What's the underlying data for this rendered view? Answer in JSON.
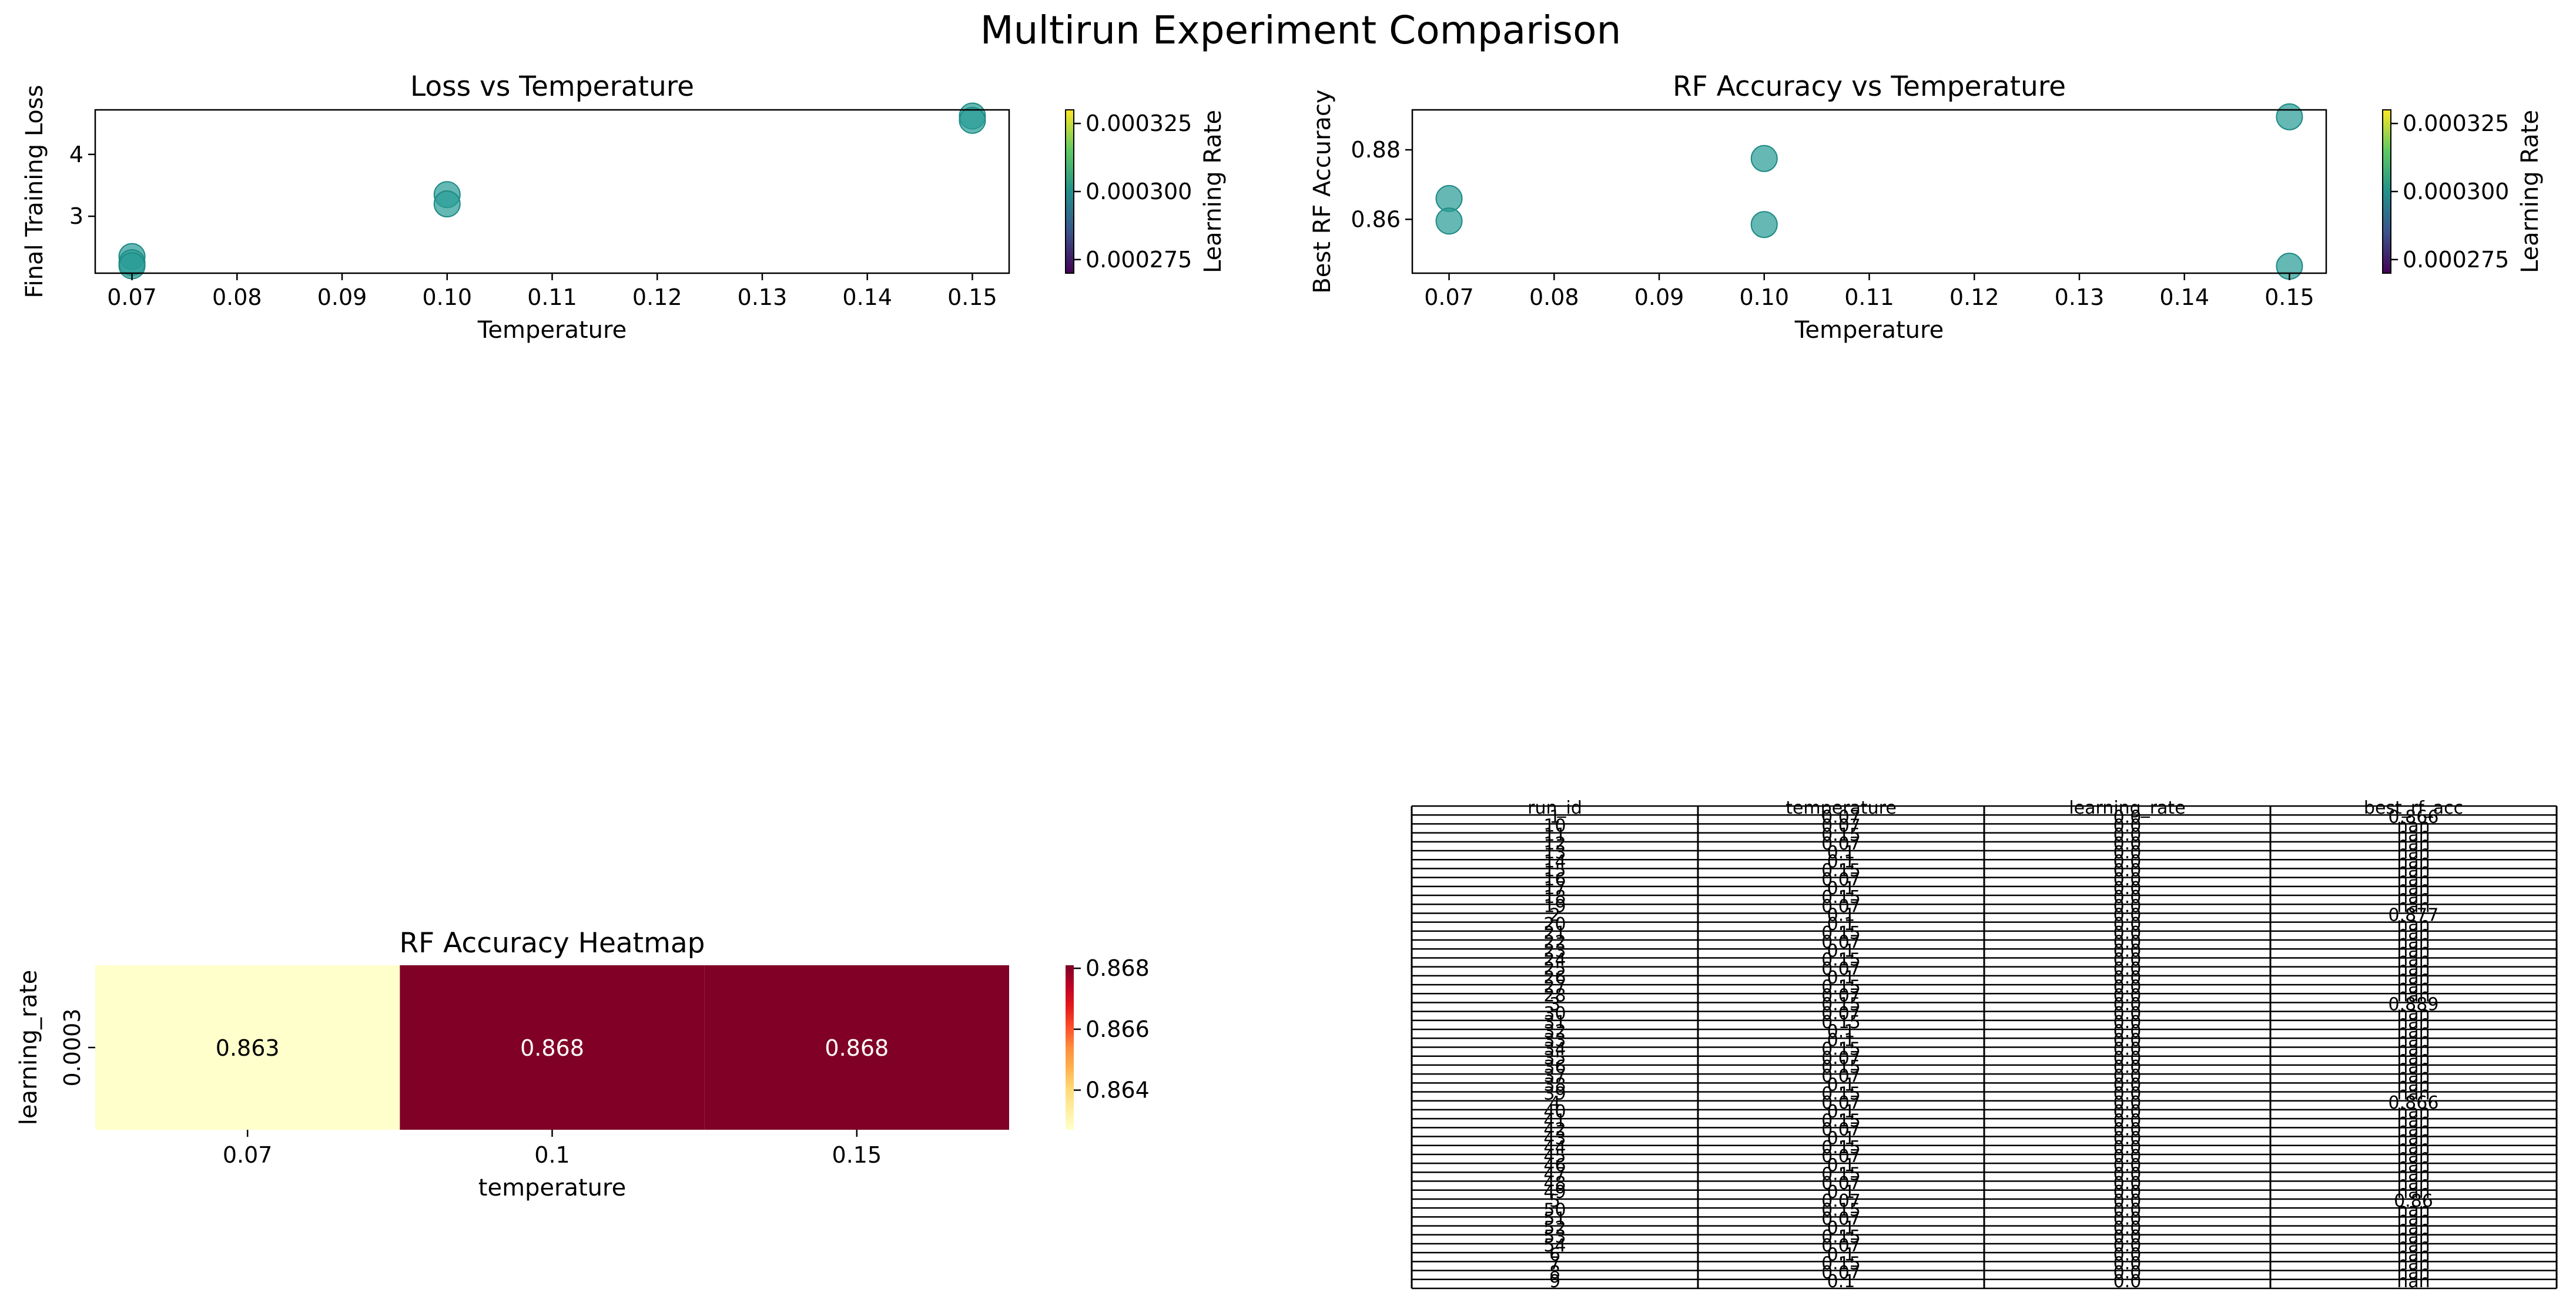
{
  "figure": {
    "title": "Multirun Experiment Comparison"
  },
  "colors": {
    "point_fill": "#2a9d96",
    "point_edge": "#1f8a85",
    "viridis": [
      "#440154",
      "#3b528b",
      "#21918c",
      "#5ec962",
      "#fde725"
    ],
    "ylorrd": [
      "#ffffcc",
      "#ffeda0",
      "#fed976",
      "#feb24c",
      "#fd8d3c",
      "#fc4e2a",
      "#e31a1c",
      "#bd0026",
      "#800026"
    ]
  },
  "chart_data": [
    {
      "type": "scatter",
      "title": "Loss vs Temperature",
      "xlabel": "Temperature",
      "ylabel": "Final Training Loss",
      "xlim": [
        0.0665,
        0.1535
      ],
      "ylim": [
        2.08,
        4.72
      ],
      "xticks": [
        "0.07",
        "0.08",
        "0.09",
        "0.10",
        "0.11",
        "0.12",
        "0.13",
        "0.14",
        "0.15"
      ],
      "yticks": [
        "3",
        "4"
      ],
      "x": [
        0.07,
        0.07,
        0.07,
        0.1,
        0.1,
        0.15,
        0.15
      ],
      "y": [
        2.35,
        2.25,
        2.2,
        3.35,
        3.2,
        4.62,
        4.55
      ],
      "colorbar": {
        "label": "Learning Rate",
        "min": 0.00027,
        "max": 0.00033,
        "ticks": [
          "0.000275",
          "0.000300",
          "0.000325"
        ]
      }
    },
    {
      "type": "scatter",
      "title": "RF Accuracy vs Temperature",
      "xlabel": "Temperature",
      "ylabel": "Best RF Accuracy",
      "xlim": [
        0.0665,
        0.1535
      ],
      "ylim": [
        0.8445,
        0.8915
      ],
      "xticks": [
        "0.07",
        "0.08",
        "0.09",
        "0.10",
        "0.11",
        "0.12",
        "0.13",
        "0.14",
        "0.15"
      ],
      "yticks": [
        "0.86",
        "0.88"
      ],
      "x": [
        0.07,
        0.07,
        0.1,
        0.1,
        0.15,
        0.15
      ],
      "y": [
        0.866,
        0.8595,
        0.8775,
        0.8585,
        0.8895,
        0.8465
      ],
      "colorbar": {
        "label": "Learning Rate",
        "min": 0.00027,
        "max": 0.00033,
        "ticks": [
          "0.000275",
          "0.000300",
          "0.000325"
        ]
      }
    },
    {
      "type": "heatmap",
      "title": "RF Accuracy Heatmap",
      "xlabel": "temperature",
      "ylabel": "learning_rate",
      "x_categories": [
        "0.07",
        "0.1",
        "0.15"
      ],
      "y_categories": [
        "0.0003"
      ],
      "values": [
        [
          0.863,
          0.868,
          0.868
        ]
      ],
      "labels": [
        [
          "0.863",
          "0.868",
          "0.868"
        ]
      ],
      "vmin": 0.8627,
      "vmax": 0.8681,
      "colorbar": {
        "ticks": [
          "0.864",
          "0.866",
          "0.868"
        ],
        "tick_values": [
          0.864,
          0.866,
          0.868
        ]
      }
    },
    {
      "type": "table",
      "columns": [
        "run_id",
        "temperature",
        "learning_rate",
        "best_rf_acc"
      ],
      "rows": [
        [
          "1",
          "0.07",
          "0.0",
          "0.866"
        ],
        [
          "10",
          "0.07",
          "0.0",
          "nan"
        ],
        [
          "11",
          "0.15",
          "0.0",
          "nan"
        ],
        [
          "12",
          "0.07",
          "0.0",
          "nan"
        ],
        [
          "13",
          "0.1",
          "0.0",
          "nan"
        ],
        [
          "14",
          "0.1",
          "0.0",
          "nan"
        ],
        [
          "15",
          "0.15",
          "0.0",
          "nan"
        ],
        [
          "16",
          "0.07",
          "0.0",
          "nan"
        ],
        [
          "17",
          "0.1",
          "0.0",
          "nan"
        ],
        [
          "18",
          "0.15",
          "0.0",
          "nan"
        ],
        [
          "19",
          "0.07",
          "0.0",
          "nan"
        ],
        [
          "2",
          "0.1",
          "0.0",
          "0.877"
        ],
        [
          "20",
          "0.1",
          "0.0",
          "nan"
        ],
        [
          "21",
          "0.15",
          "0.0",
          "nan"
        ],
        [
          "22",
          "0.07",
          "0.0",
          "nan"
        ],
        [
          "23",
          "0.1",
          "0.0",
          "nan"
        ],
        [
          "24",
          "0.15",
          "0.0",
          "nan"
        ],
        [
          "25",
          "0.07",
          "0.0",
          "nan"
        ],
        [
          "26",
          "0.1",
          "0.0",
          "nan"
        ],
        [
          "27",
          "0.15",
          "0.0",
          "nan"
        ],
        [
          "28",
          "0.07",
          "0.0",
          "nan"
        ],
        [
          "3",
          "0.15",
          "0.0",
          "0.889"
        ],
        [
          "30",
          "0.07",
          "0.0",
          "nan"
        ],
        [
          "31",
          "0.15",
          "0.0",
          "nan"
        ],
        [
          "32",
          "0.1",
          "0.0",
          "nan"
        ],
        [
          "33",
          "0.1",
          "0.0",
          "nan"
        ],
        [
          "34",
          "0.15",
          "0.0",
          "nan"
        ],
        [
          "35",
          "0.07",
          "0.0",
          "nan"
        ],
        [
          "36",
          "0.15",
          "0.0",
          "nan"
        ],
        [
          "37",
          "0.07",
          "0.0",
          "nan"
        ],
        [
          "38",
          "0.1",
          "0.0",
          "nan"
        ],
        [
          "39",
          "0.15",
          "0.0",
          "nan"
        ],
        [
          "4",
          "0.07",
          "0.0",
          "0.866"
        ],
        [
          "40",
          "0.1",
          "0.0",
          "nan"
        ],
        [
          "41",
          "0.15",
          "0.0",
          "nan"
        ],
        [
          "42",
          "0.07",
          "0.0",
          "nan"
        ],
        [
          "43",
          "0.1",
          "0.0",
          "nan"
        ],
        [
          "44",
          "0.15",
          "0.0",
          "nan"
        ],
        [
          "45",
          "0.07",
          "0.0",
          "nan"
        ],
        [
          "46",
          "0.1",
          "0.0",
          "nan"
        ],
        [
          "47",
          "0.15",
          "0.0",
          "nan"
        ],
        [
          "48",
          "0.07",
          "0.0",
          "nan"
        ],
        [
          "49",
          "0.1",
          "0.0",
          "nan"
        ],
        [
          "5",
          "0.07",
          "0.0",
          "0.86"
        ],
        [
          "50",
          "0.15",
          "0.0",
          "nan"
        ],
        [
          "51",
          "0.07",
          "0.0",
          "nan"
        ],
        [
          "52",
          "0.1",
          "0.0",
          "nan"
        ],
        [
          "53",
          "0.15",
          "0.0",
          "nan"
        ],
        [
          "54",
          "0.07",
          "0.0",
          "nan"
        ],
        [
          "6",
          "0.1",
          "0.0",
          "nan"
        ],
        [
          "7",
          "0.15",
          "0.0",
          "nan"
        ],
        [
          "8",
          "0.07",
          "0.0",
          "nan"
        ],
        [
          "9",
          "0.1",
          "0.0",
          "nan"
        ]
      ]
    }
  ]
}
